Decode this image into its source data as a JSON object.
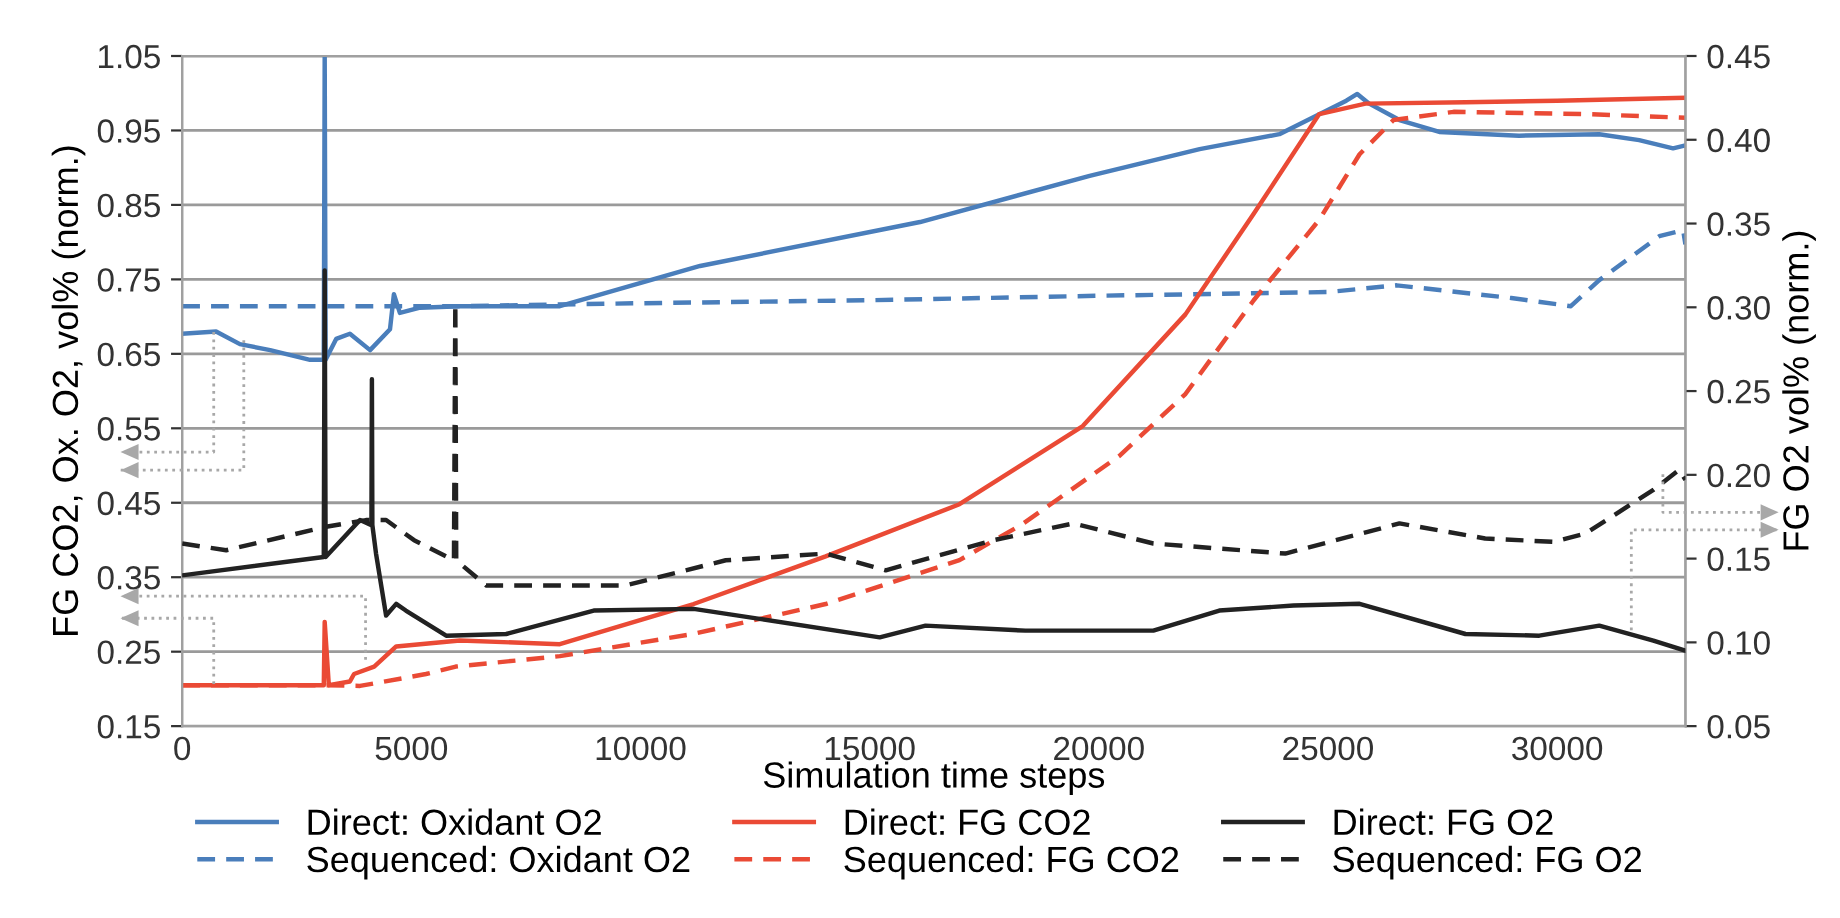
{
  "chart_data": {
    "type": "line",
    "xlabel": "Simulation time steps",
    "ylabel": "FG CO2, Ox. O2, vol% (norm.)",
    "y2label": "FG O2 vol% (norm.)",
    "xlim": [
      0,
      32800
    ],
    "xticks": [
      0,
      5000,
      10000,
      15000,
      20000,
      25000,
      30000
    ],
    "ylim": [
      0.15,
      1.05
    ],
    "yticks": [
      0.15,
      0.25,
      0.35,
      0.45,
      0.55,
      0.65,
      0.75,
      0.85,
      0.95,
      1.05
    ],
    "y2lim": [
      0.05,
      0.45
    ],
    "y2ticks": [
      0.05,
      {
        "value": 0.1,
        "label": "0.10"
      },
      0.15,
      {
        "value": 0.2,
        "label": "0.20"
      },
      0.25,
      {
        "value": 0.3,
        "label": "0.30"
      },
      0.35,
      {
        "value": 0.4,
        "label": "0.40"
      },
      0.45
    ],
    "grid": "y",
    "legend": "bottom",
    "marker": "none",
    "series": [
      {
        "name": "Direct: Oxidant O2",
        "color": "#4a7ebb",
        "line_style": "solid",
        "axis": "y",
        "x": [
          0,
          740,
          1260,
          1920,
          2790,
          3090,
          3110,
          3130,
          3360,
          3660,
          4100,
          4535,
          4620,
          4750,
          5190,
          6060,
          8240,
          11300,
          16100,
          19800,
          22200,
          23940,
          25400,
          25640,
          25900,
          26560,
          27430,
          29170,
          30920,
          31790,
          32530,
          32800
        ],
        "values": [
          0.677,
          0.68,
          0.663,
          0.655,
          0.642,
          0.642,
          1.05,
          0.642,
          0.67,
          0.677,
          0.655,
          0.683,
          0.73,
          0.705,
          0.712,
          0.714,
          0.714,
          0.768,
          0.827,
          0.889,
          0.925,
          0.945,
          0.99,
          0.999,
          0.986,
          0.964,
          0.948,
          0.943,
          0.945,
          0.937,
          0.926,
          0.93
        ]
      },
      {
        "name": "Sequenced: Oxidant O2",
        "color": "#4a7ebb",
        "line_style": "dashed",
        "axis": "y",
        "x": [
          0,
          3000,
          6000,
          10000,
          15000,
          20000,
          25000,
          26500,
          29000,
          30300,
          30920,
          32230,
          32750,
          32800
        ],
        "values": [
          0.714,
          0.714,
          0.714,
          0.718,
          0.722,
          0.728,
          0.733,
          0.742,
          0.725,
          0.714,
          0.749,
          0.808,
          0.816,
          0.797
        ]
      },
      {
        "name": "Direct: FG CO2",
        "color": "#ea4a35",
        "line_style": "solid",
        "axis": "y",
        "x": [
          0,
          3090,
          3110,
          3200,
          3660,
          3750,
          4190,
          4670,
          6060,
          8240,
          11160,
          14040,
          16960,
          19650,
          21890,
          23380,
          24810,
          25820,
          28000,
          30000,
          32800
        ],
        "values": [
          0.205,
          0.205,
          0.29,
          0.205,
          0.21,
          0.22,
          0.23,
          0.257,
          0.265,
          0.26,
          0.314,
          0.378,
          0.448,
          0.553,
          0.703,
          0.838,
          0.972,
          0.986,
          0.988,
          0.99,
          0.994
        ]
      },
      {
        "name": "Sequenced: FG CO2",
        "color": "#ea4a35",
        "line_style": "dashed",
        "axis": "y",
        "x": [
          0,
          3000,
          3880,
          5320,
          5970,
          8240,
          11160,
          14040,
          16960,
          18300,
          20450,
          21890,
          23380,
          24810,
          25690,
          26430,
          27740,
          30620,
          32800
        ],
        "values": [
          0.205,
          0.205,
          0.204,
          0.22,
          0.23,
          0.244,
          0.274,
          0.314,
          0.373,
          0.42,
          0.513,
          0.596,
          0.722,
          0.83,
          0.918,
          0.964,
          0.975,
          0.972,
          0.967
        ]
      },
      {
        "name": "Direct: FG O2",
        "color": "#222222",
        "line_style": "solid",
        "axis": "y2",
        "x": [
          0,
          3090,
          3110,
          3130,
          3880,
          4130,
          4140,
          4150,
          4230,
          4450,
          4670,
          4880,
          5760,
          7070,
          8980,
          11160,
          12600,
          15220,
          16220,
          18400,
          21190,
          22630,
          24250,
          25690,
          28000,
          29610,
          30920,
          32100,
          32800
        ],
        "values": [
          0.14,
          0.151,
          0.322,
          0.151,
          0.173,
          0.17,
          0.257,
          0.17,
          0.153,
          0.116,
          0.123,
          0.119,
          0.104,
          0.105,
          0.119,
          0.12,
          0.114,
          0.103,
          0.11,
          0.107,
          0.107,
          0.119,
          0.122,
          0.123,
          0.105,
          0.104,
          0.11,
          0.101,
          0.095
        ]
      },
      {
        "name": "Sequenced: FG O2",
        "color": "#222222",
        "line_style": "dashed",
        "axis": "y2",
        "x": [
          0,
          960,
          3140,
          4010,
          4450,
          5060,
          5930,
          5960,
          5980,
          6630,
          9680,
          11860,
          14040,
          15350,
          17700,
          19450,
          21190,
          24070,
          26560,
          28430,
          29920,
          30620,
          32100,
          32660,
          32800
        ],
        "values": [
          0.159,
          0.155,
          0.169,
          0.173,
          0.173,
          0.161,
          0.149,
          0.302,
          0.149,
          0.134,
          0.134,
          0.149,
          0.153,
          0.143,
          0.161,
          0.171,
          0.159,
          0.153,
          0.171,
          0.162,
          0.16,
          0.165,
          0.191,
          0.203,
          0.197
        ]
      }
    ]
  }
}
